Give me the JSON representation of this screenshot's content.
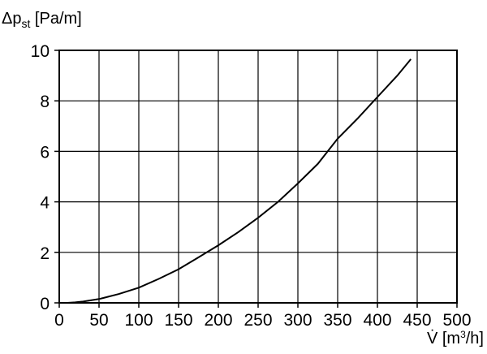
{
  "chart_data": {
    "type": "line",
    "title": "",
    "ylabel": {
      "prefix": "Δp",
      "subscript": "st",
      "unit": " [Pa/m]"
    },
    "xlabel": {
      "symbol": "V̇",
      "unit_open": " [m",
      "unit_exp": "3",
      "unit_close": "/h]"
    },
    "xlim": [
      0,
      500
    ],
    "ylim": [
      0,
      10
    ],
    "xticks": [
      0,
      50,
      100,
      150,
      200,
      250,
      300,
      350,
      400,
      450,
      500
    ],
    "yticks": [
      0,
      2,
      4,
      6,
      8,
      10
    ],
    "grid": true,
    "series": [
      {
        "color": "#000000",
        "points": [
          [
            10,
            0.0
          ],
          [
            20,
            0.02
          ],
          [
            30,
            0.05
          ],
          [
            50,
            0.15
          ],
          [
            75,
            0.35
          ],
          [
            100,
            0.6
          ],
          [
            125,
            0.95
          ],
          [
            150,
            1.33
          ],
          [
            175,
            1.8
          ],
          [
            200,
            2.28
          ],
          [
            225,
            2.8
          ],
          [
            250,
            3.37
          ],
          [
            275,
            4.0
          ],
          [
            300,
            4.73
          ],
          [
            325,
            5.5
          ],
          [
            350,
            6.5
          ],
          [
            375,
            7.3
          ],
          [
            400,
            8.15
          ],
          [
            425,
            9.0
          ],
          [
            442,
            9.65
          ]
        ]
      }
    ]
  }
}
